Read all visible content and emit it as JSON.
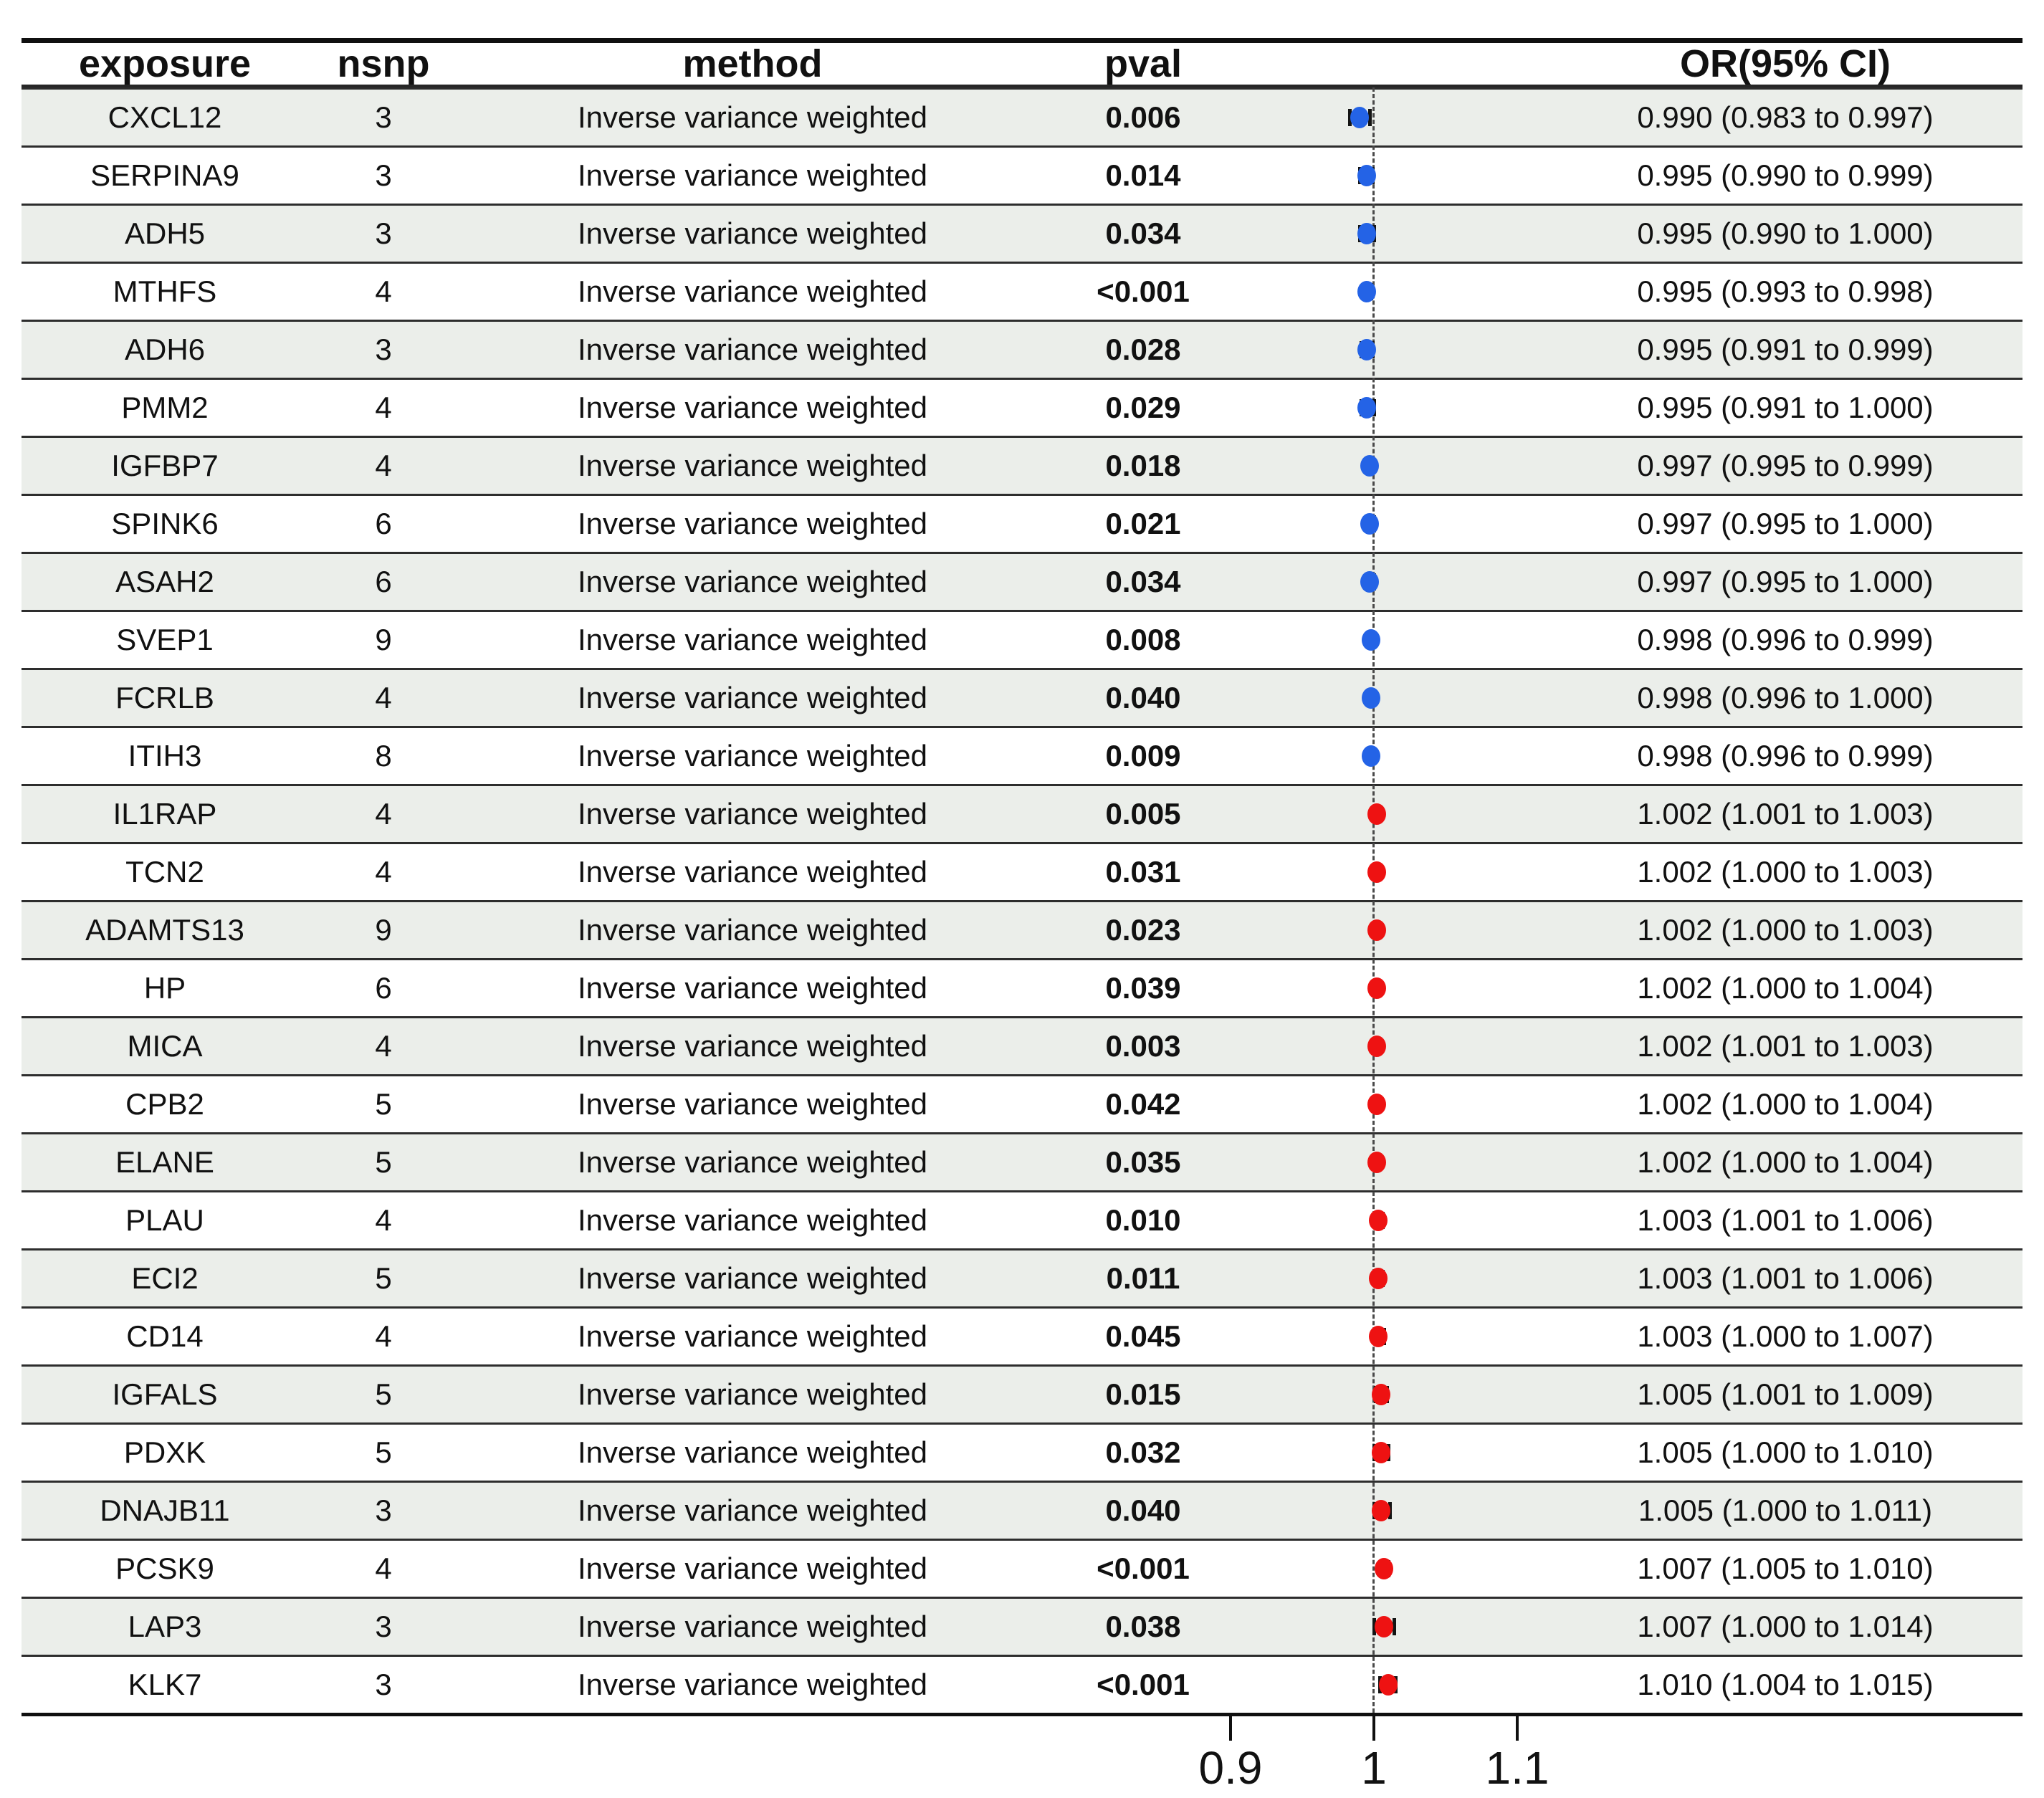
{
  "chart_data": {
    "type": "table",
    "description": "Forest plot of Mendelian randomization results: odds ratios with 95% CI per exposure protein",
    "header": {
      "exposure": "exposure",
      "nsnp": "nsnp",
      "method": "method",
      "pval": "pval",
      "or_ci": "OR(95% CI)"
    },
    "x_axis": {
      "tick_labels": [
        "0.9",
        "1",
        "1.1"
      ],
      "tick_values": [
        0.9,
        1.0,
        1.1
      ],
      "ref_line": 1.0,
      "grid": false
    },
    "colors": {
      "marker_below_ref": "#2463e6",
      "marker_above_ref": "#ee1212",
      "row_shade": "#ebeeea",
      "ref_line_color": "#4a4a4a"
    },
    "rows": [
      {
        "exposure": "CXCL12",
        "nsnp": "3",
        "method": "Inverse variance weighted",
        "pval": "0.006",
        "or": 0.99,
        "ci_low": 0.983,
        "ci_high": 0.997,
        "or_ci": "0.990 (0.983 to 0.997)"
      },
      {
        "exposure": "SERPINA9",
        "nsnp": "3",
        "method": "Inverse variance weighted",
        "pval": "0.014",
        "or": 0.995,
        "ci_low": 0.99,
        "ci_high": 0.999,
        "or_ci": "0.995 (0.990 to 0.999)"
      },
      {
        "exposure": "ADH5",
        "nsnp": "3",
        "method": "Inverse variance weighted",
        "pval": "0.034",
        "or": 0.995,
        "ci_low": 0.99,
        "ci_high": 1.0,
        "or_ci": "0.995 (0.990 to 1.000)"
      },
      {
        "exposure": "MTHFS",
        "nsnp": "4",
        "method": "Inverse variance weighted",
        "pval": "<0.001",
        "or": 0.995,
        "ci_low": 0.993,
        "ci_high": 0.998,
        "or_ci": "0.995 (0.993 to 0.998)"
      },
      {
        "exposure": "ADH6",
        "nsnp": "3",
        "method": "Inverse variance weighted",
        "pval": "0.028",
        "or": 0.995,
        "ci_low": 0.991,
        "ci_high": 0.999,
        "or_ci": "0.995 (0.991 to 0.999)"
      },
      {
        "exposure": "PMM2",
        "nsnp": "4",
        "method": "Inverse variance weighted",
        "pval": "0.029",
        "or": 0.995,
        "ci_low": 0.991,
        "ci_high": 1.0,
        "or_ci": "0.995 (0.991 to 1.000)"
      },
      {
        "exposure": "IGFBP7",
        "nsnp": "4",
        "method": "Inverse variance weighted",
        "pval": "0.018",
        "or": 0.997,
        "ci_low": 0.995,
        "ci_high": 0.999,
        "or_ci": "0.997 (0.995 to 0.999)"
      },
      {
        "exposure": "SPINK6",
        "nsnp": "6",
        "method": "Inverse variance weighted",
        "pval": "0.021",
        "or": 0.997,
        "ci_low": 0.995,
        "ci_high": 1.0,
        "or_ci": "0.997 (0.995 to 1.000)"
      },
      {
        "exposure": "ASAH2",
        "nsnp": "6",
        "method": "Inverse variance weighted",
        "pval": "0.034",
        "or": 0.997,
        "ci_low": 0.995,
        "ci_high": 1.0,
        "or_ci": "0.997 (0.995 to 1.000)"
      },
      {
        "exposure": "SVEP1",
        "nsnp": "9",
        "method": "Inverse variance weighted",
        "pval": "0.008",
        "or": 0.998,
        "ci_low": 0.996,
        "ci_high": 0.999,
        "or_ci": "0.998 (0.996 to 0.999)"
      },
      {
        "exposure": "FCRLB",
        "nsnp": "4",
        "method": "Inverse variance weighted",
        "pval": "0.040",
        "or": 0.998,
        "ci_low": 0.996,
        "ci_high": 1.0,
        "or_ci": "0.998 (0.996 to 1.000)"
      },
      {
        "exposure": "ITIH3",
        "nsnp": "8",
        "method": "Inverse variance weighted",
        "pval": "0.009",
        "or": 0.998,
        "ci_low": 0.996,
        "ci_high": 0.999,
        "or_ci": "0.998 (0.996 to 0.999)"
      },
      {
        "exposure": "IL1RAP",
        "nsnp": "4",
        "method": "Inverse variance weighted",
        "pval": "0.005",
        "or": 1.002,
        "ci_low": 1.001,
        "ci_high": 1.003,
        "or_ci": "1.002 (1.001 to 1.003)"
      },
      {
        "exposure": "TCN2",
        "nsnp": "4",
        "method": "Inverse variance weighted",
        "pval": "0.031",
        "or": 1.002,
        "ci_low": 1.0,
        "ci_high": 1.003,
        "or_ci": "1.002 (1.000 to 1.003)"
      },
      {
        "exposure": "ADAMTS13",
        "nsnp": "9",
        "method": "Inverse variance weighted",
        "pval": "0.023",
        "or": 1.002,
        "ci_low": 1.0,
        "ci_high": 1.003,
        "or_ci": "1.002 (1.000 to 1.003)"
      },
      {
        "exposure": "HP",
        "nsnp": "6",
        "method": "Inverse variance weighted",
        "pval": "0.039",
        "or": 1.002,
        "ci_low": 1.0,
        "ci_high": 1.004,
        "or_ci": "1.002 (1.000 to 1.004)"
      },
      {
        "exposure": "MICA",
        "nsnp": "4",
        "method": "Inverse variance weighted",
        "pval": "0.003",
        "or": 1.002,
        "ci_low": 1.001,
        "ci_high": 1.003,
        "or_ci": "1.002 (1.001 to 1.003)"
      },
      {
        "exposure": "CPB2",
        "nsnp": "5",
        "method": "Inverse variance weighted",
        "pval": "0.042",
        "or": 1.002,
        "ci_low": 1.0,
        "ci_high": 1.004,
        "or_ci": "1.002 (1.000 to 1.004)"
      },
      {
        "exposure": "ELANE",
        "nsnp": "5",
        "method": "Inverse variance weighted",
        "pval": "0.035",
        "or": 1.002,
        "ci_low": 1.0,
        "ci_high": 1.004,
        "or_ci": "1.002 (1.000 to 1.004)"
      },
      {
        "exposure": "PLAU",
        "nsnp": "4",
        "method": "Inverse variance weighted",
        "pval": "0.010",
        "or": 1.003,
        "ci_low": 1.001,
        "ci_high": 1.006,
        "or_ci": "1.003 (1.001 to 1.006)"
      },
      {
        "exposure": "ECI2",
        "nsnp": "5",
        "method": "Inverse variance weighted",
        "pval": "0.011",
        "or": 1.003,
        "ci_low": 1.001,
        "ci_high": 1.006,
        "or_ci": "1.003 (1.001 to 1.006)"
      },
      {
        "exposure": "CD14",
        "nsnp": "4",
        "method": "Inverse variance weighted",
        "pval": "0.045",
        "or": 1.003,
        "ci_low": 1.0,
        "ci_high": 1.007,
        "or_ci": "1.003 (1.000 to 1.007)"
      },
      {
        "exposure": "IGFALS",
        "nsnp": "5",
        "method": "Inverse variance weighted",
        "pval": "0.015",
        "or": 1.005,
        "ci_low": 1.001,
        "ci_high": 1.009,
        "or_ci": "1.005 (1.001 to 1.009)"
      },
      {
        "exposure": "PDXK",
        "nsnp": "5",
        "method": "Inverse variance weighted",
        "pval": "0.032",
        "or": 1.005,
        "ci_low": 1.0,
        "ci_high": 1.01,
        "or_ci": "1.005 (1.000 to 1.010)"
      },
      {
        "exposure": "DNAJB11",
        "nsnp": "3",
        "method": "Inverse variance weighted",
        "pval": "0.040",
        "or": 1.005,
        "ci_low": 1.0,
        "ci_high": 1.011,
        "or_ci": "1.005 (1.000 to 1.011)"
      },
      {
        "exposure": "PCSK9",
        "nsnp": "4",
        "method": "Inverse variance weighted",
        "pval": "<0.001",
        "or": 1.007,
        "ci_low": 1.005,
        "ci_high": 1.01,
        "or_ci": "1.007 (1.005 to 1.010)"
      },
      {
        "exposure": "LAP3",
        "nsnp": "3",
        "method": "Inverse variance weighted",
        "pval": "0.038",
        "or": 1.007,
        "ci_low": 1.0,
        "ci_high": 1.014,
        "or_ci": "1.007 (1.000 to 1.014)"
      },
      {
        "exposure": "KLK7",
        "nsnp": "3",
        "method": "Inverse variance weighted",
        "pval": "<0.001",
        "or": 1.01,
        "ci_low": 1.004,
        "ci_high": 1.015,
        "or_ci": "1.010 (1.004 to 1.015)"
      }
    ]
  }
}
